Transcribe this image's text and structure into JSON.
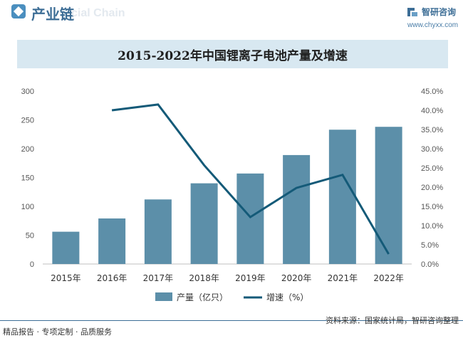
{
  "header": {
    "title": "产业链",
    "watermark_ghost": "cial Chain",
    "logo_text": "智研咨询",
    "logo_url": "www.chyxx.com"
  },
  "footer": {
    "left": "精品报告 · 专项定制 · 品质服务",
    "right": "资料来源：国家统计局，智研咨询整理"
  },
  "colors": {
    "bar": "#5c8fa9",
    "line": "#145a78",
    "title_band": "#d8e8f1"
  },
  "chart_data": {
    "type": "bar",
    "title": "2015-2022年中国锂离子电池产量及增速",
    "categories": [
      "2015年",
      "2016年",
      "2017年",
      "2018年",
      "2019年",
      "2020年",
      "2021年",
      "2022年"
    ],
    "series": [
      {
        "name": "产量（亿只）",
        "kind": "bar",
        "axis": "left",
        "values": [
          56,
          79,
          112,
          140,
          157,
          189,
          233,
          238
        ]
      },
      {
        "name": "增速（%）",
        "kind": "line",
        "axis": "right",
        "values": [
          null,
          40.0,
          41.5,
          25.7,
          12.2,
          19.8,
          23.2,
          2.6
        ]
      }
    ],
    "y_left": {
      "min": 0,
      "max": 300,
      "ticks": [
        "0",
        "50",
        "100",
        "150",
        "200",
        "250",
        "300"
      ]
    },
    "y_right": {
      "min": 0,
      "max": 45,
      "ticks": [
        "0.0%",
        "5.0%",
        "10.0%",
        "15.0%",
        "20.0%",
        "25.0%",
        "30.0%",
        "35.0%",
        "40.0%",
        "45.0%"
      ]
    },
    "legend_position": "bottom",
    "grid": false
  }
}
